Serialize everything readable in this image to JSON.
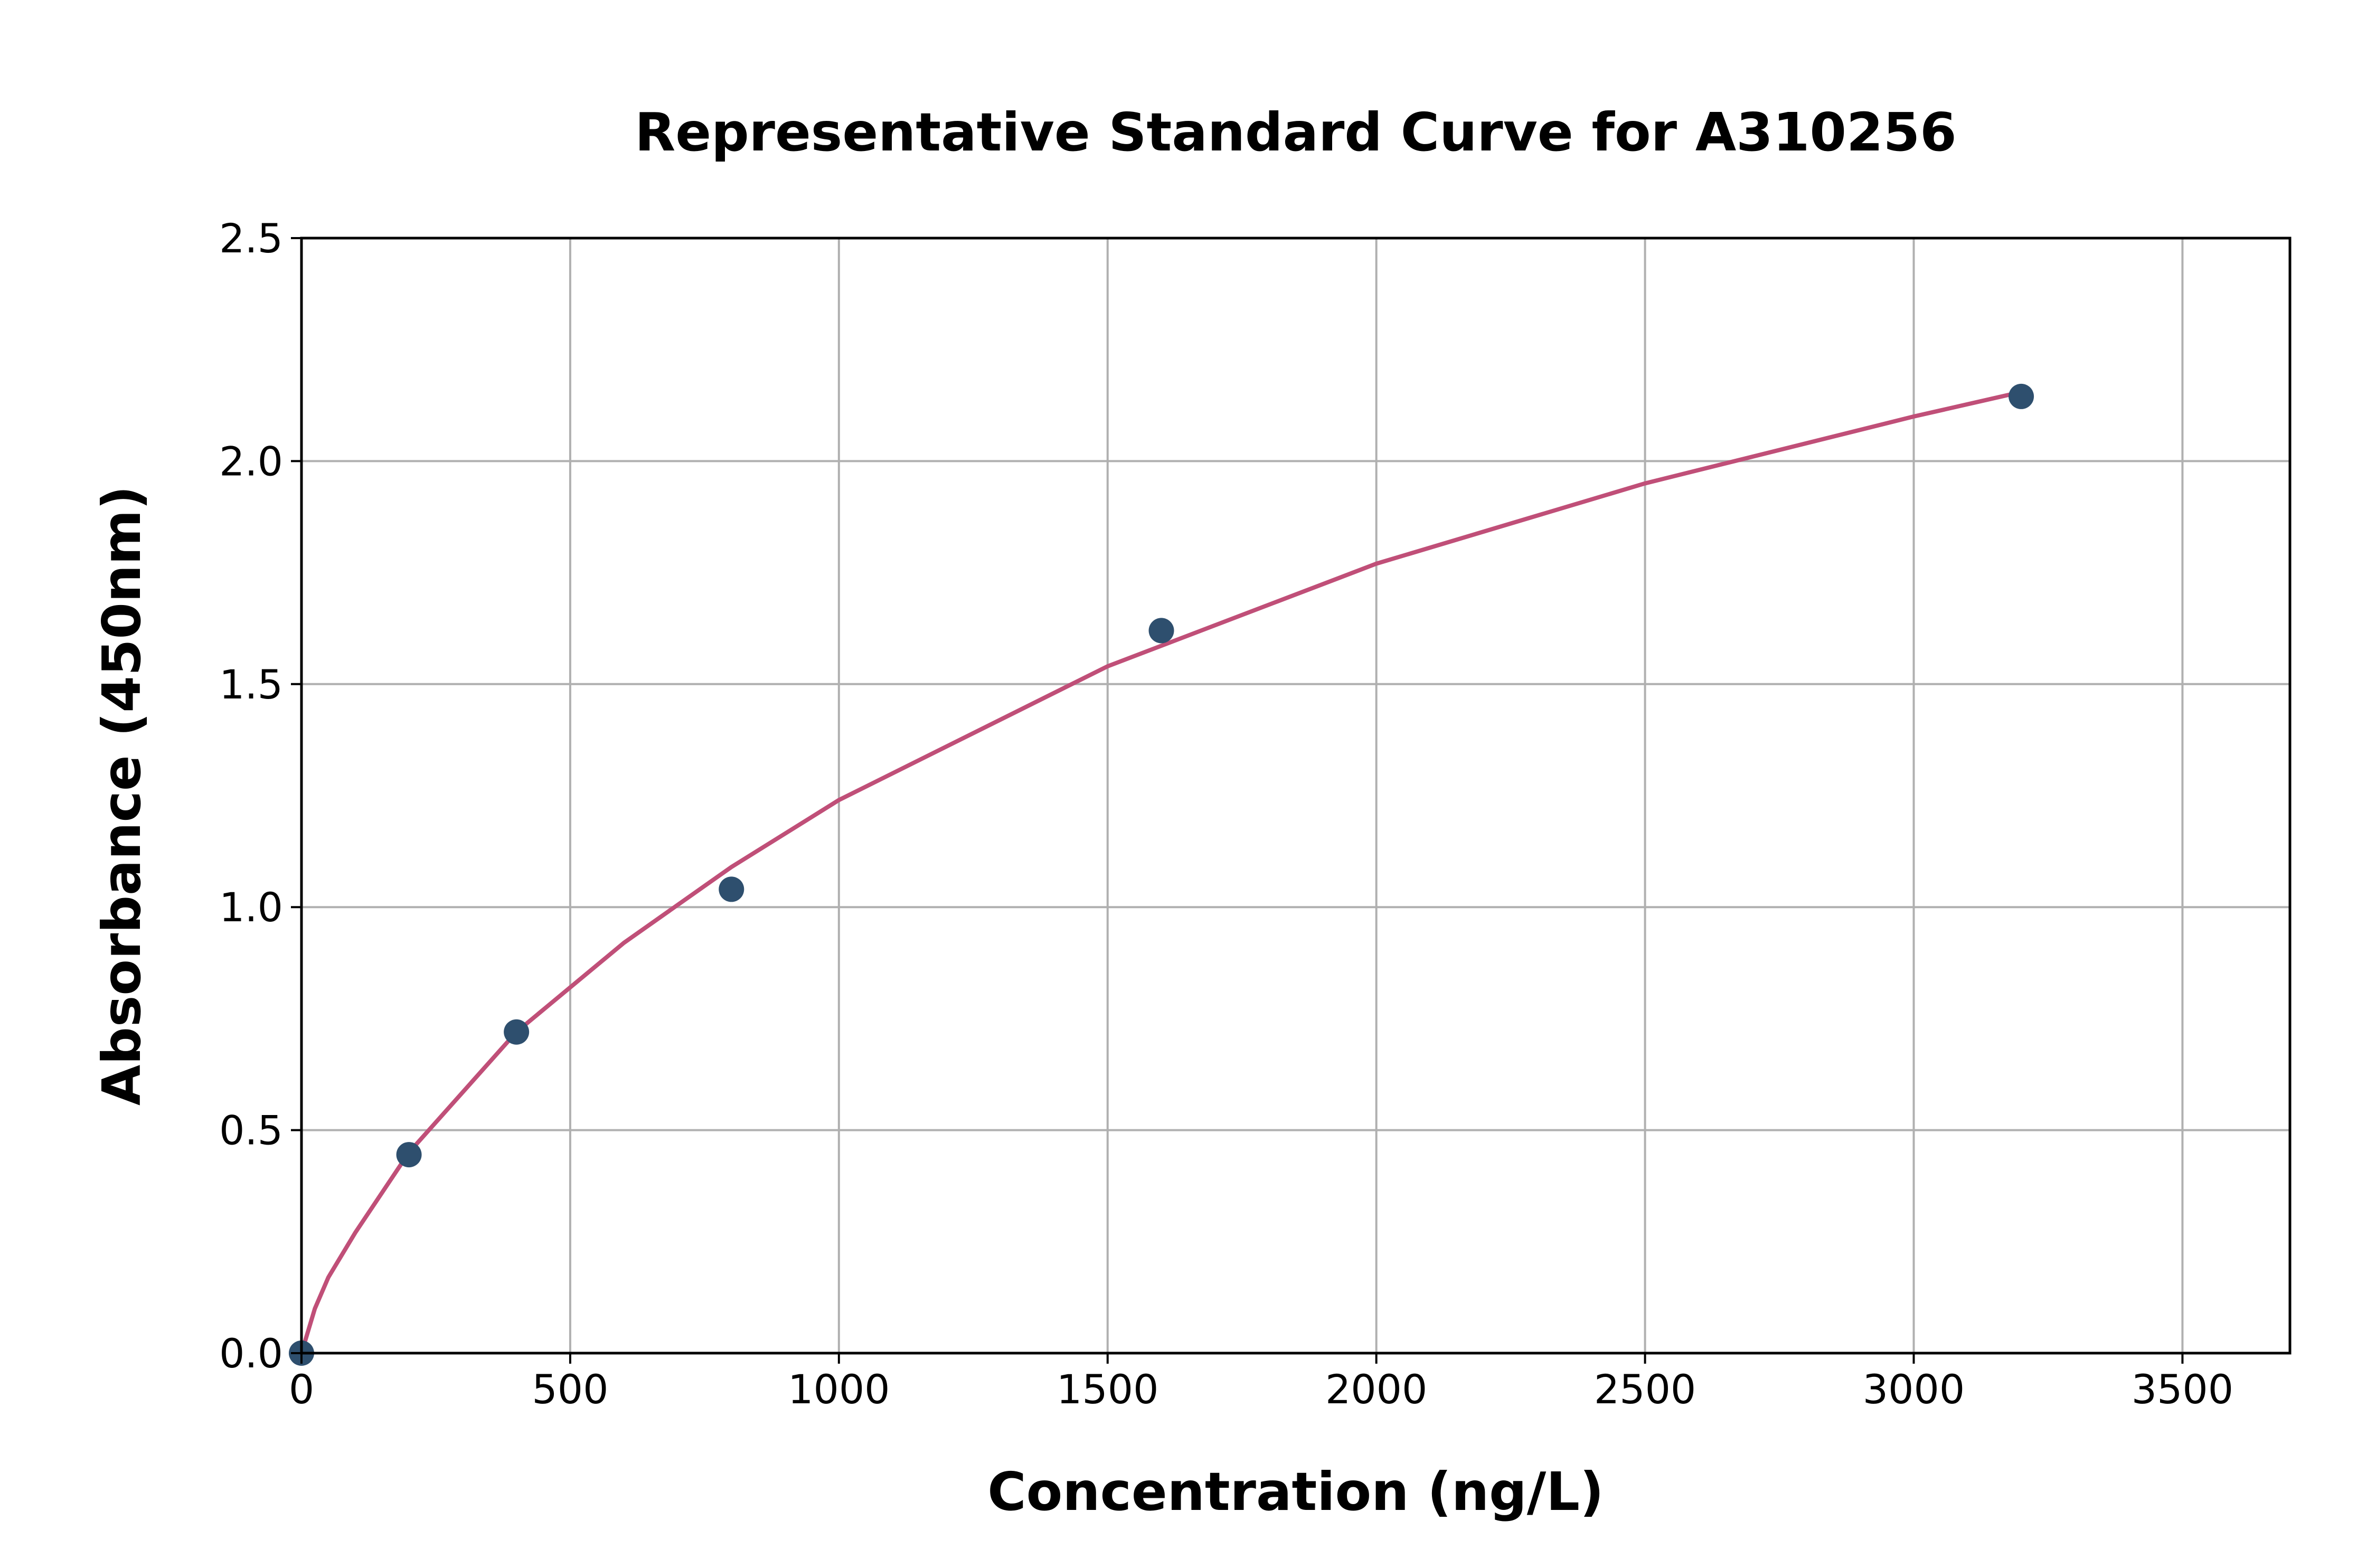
{
  "chart_data": {
    "type": "scatter",
    "title": "Representative Standard Curve for A310256",
    "xlabel": "Concentration (ng/L)",
    "ylabel": "Absorbance (450nm)",
    "xlim": [
      0,
      3700
    ],
    "ylim": [
      0,
      2.5
    ],
    "xticks": [
      "0",
      "500",
      "1000",
      "1500",
      "2000",
      "2500",
      "3000",
      "3500"
    ],
    "yticks": [
      "0.0",
      "0.5",
      "1.0",
      "1.5",
      "2.0",
      "2.5"
    ],
    "grid": true,
    "points": {
      "x": [
        0,
        200,
        400,
        800,
        1600,
        3200
      ],
      "y": [
        0.0,
        0.445,
        0.72,
        1.04,
        1.62,
        2.145
      ],
      "color": "#2e4f6e"
    },
    "fit_curve": {
      "x": [
        0,
        25,
        50,
        100,
        200,
        400,
        600,
        800,
        1000,
        1500,
        2000,
        2500,
        3000,
        3200
      ],
      "y": [
        0,
        0.1,
        0.17,
        0.27,
        0.45,
        0.72,
        0.92,
        1.09,
        1.24,
        1.54,
        1.77,
        1.95,
        2.1,
        2.155
      ],
      "color": "#c04f78"
    }
  }
}
